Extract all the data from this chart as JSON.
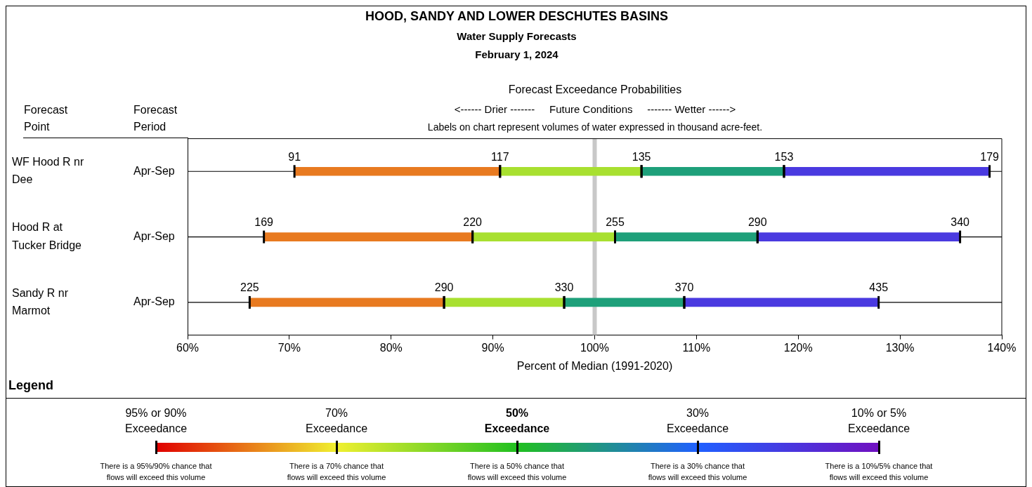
{
  "chart_data": {
    "type": "bar",
    "orientation": "horizontal",
    "title": "HOOD, SANDY AND LOWER DESCHUTES BASINS",
    "subtitle": "Water Supply Forecasts",
    "xlabel": "Percent of Median (1991-2020)",
    "categories": [
      "WF Hood R nr Dee",
      "Hood R at Tucker Bridge",
      "Sandy R nr Marmot"
    ],
    "series": [
      {
        "color": "#e87a20",
        "base": [
          70.5,
          67.5,
          66.1
        ],
        "values": [
          20.2,
          20.5,
          19.1
        ]
      },
      {
        "color": "#a8e030",
        "base": [
          90.7,
          88.0,
          85.2
        ],
        "values": [
          13.9,
          14.0,
          11.8
        ]
      },
      {
        "color": "#1ea07a",
        "base": [
          104.6,
          102.0,
          97.0
        ],
        "values": [
          14.0,
          14.0,
          11.8
        ]
      },
      {
        "color": "#4a3ae0",
        "base": [
          118.6,
          116.0,
          108.8
        ],
        "values": [
          20.2,
          19.9,
          19.1
        ]
      }
    ],
    "xlim": [
      60,
      140
    ],
    "xticks": [
      {
        "value": 60,
        "label": "60%"
      },
      {
        "value": 70,
        "label": "70%"
      },
      {
        "value": 80,
        "label": "80%"
      },
      {
        "value": 90,
        "label": "90%"
      },
      {
        "value": 100,
        "label": "100%"
      },
      {
        "value": 110,
        "label": "110%"
      },
      {
        "value": 120,
        "label": "120%"
      },
      {
        "value": 130,
        "label": "130%"
      },
      {
        "value": 140,
        "label": "140%"
      }
    ],
    "grid": "y",
    "legend": false,
    "ref_lines": [
      {
        "axis": "x",
        "value": 100,
        "color": "#c8c8c8"
      }
    ],
    "annotations": [
      "February 1, 2024",
      "Forecast Exceedance Probabilities",
      "<------ Drier -------     Future Conditions     ------- Wetter ------>",
      "Labels on chart represent volumes of water expressed in thousand acre-feet.",
      "Forecast\nPoint",
      "Forecast\nPeriod",
      "Apr-Sep",
      "Apr-Sep",
      "Apr-Sep",
      "Legend",
      "95% or 90%\nExceedance",
      "70%\nExceedance",
      "50%\nExceedance",
      "30%\nExceedance",
      "10% or 5%\nExceedance",
      "There is a 95%/90% chance that\nflows will exceed this volume",
      "There is a 70% chance that\nflows will exceed this volume",
      "There is a 50% chance that\nflows will exceed this volume",
      "There is a 30% chance that\nflows will exceed this volume",
      "There is a 10%/5% chance that\nflows will exceed this volume",
      {
        "text": "91",
        "x": 70.5,
        "y": "WF Hood R nr Dee"
      },
      {
        "text": "117",
        "x": 90.7,
        "y": "WF Hood R nr Dee"
      },
      {
        "text": "135",
        "x": 104.6,
        "y": "WF Hood R nr Dee"
      },
      {
        "text": "153",
        "x": 118.6,
        "y": "WF Hood R nr Dee"
      },
      {
        "text": "179",
        "x": 138.8,
        "y": "WF Hood R nr Dee"
      },
      {
        "text": "169",
        "x": 67.5,
        "y": "Hood R at Tucker Bridge"
      },
      {
        "text": "220",
        "x": 88.0,
        "y": "Hood R at Tucker Bridge"
      },
      {
        "text": "255",
        "x": 102.0,
        "y": "Hood R at Tucker Bridge"
      },
      {
        "text": "290",
        "x": 116.0,
        "y": "Hood R at Tucker Bridge"
      },
      {
        "text": "340",
        "x": 135.9,
        "y": "Hood R at Tucker Bridge"
      },
      {
        "text": "225",
        "x": 66.1,
        "y": "Sandy R nr Marmot"
      },
      {
        "text": "290",
        "x": 85.2,
        "y": "Sandy R nr Marmot"
      },
      {
        "text": "330",
        "x": 97.0,
        "y": "Sandy R nr Marmot"
      },
      {
        "text": "370",
        "x": 108.8,
        "y": "Sandy R nr Marmot"
      },
      {
        "text": "435",
        "x": 127.9,
        "y": "Sandy R nr Marmot"
      }
    ]
  }
}
